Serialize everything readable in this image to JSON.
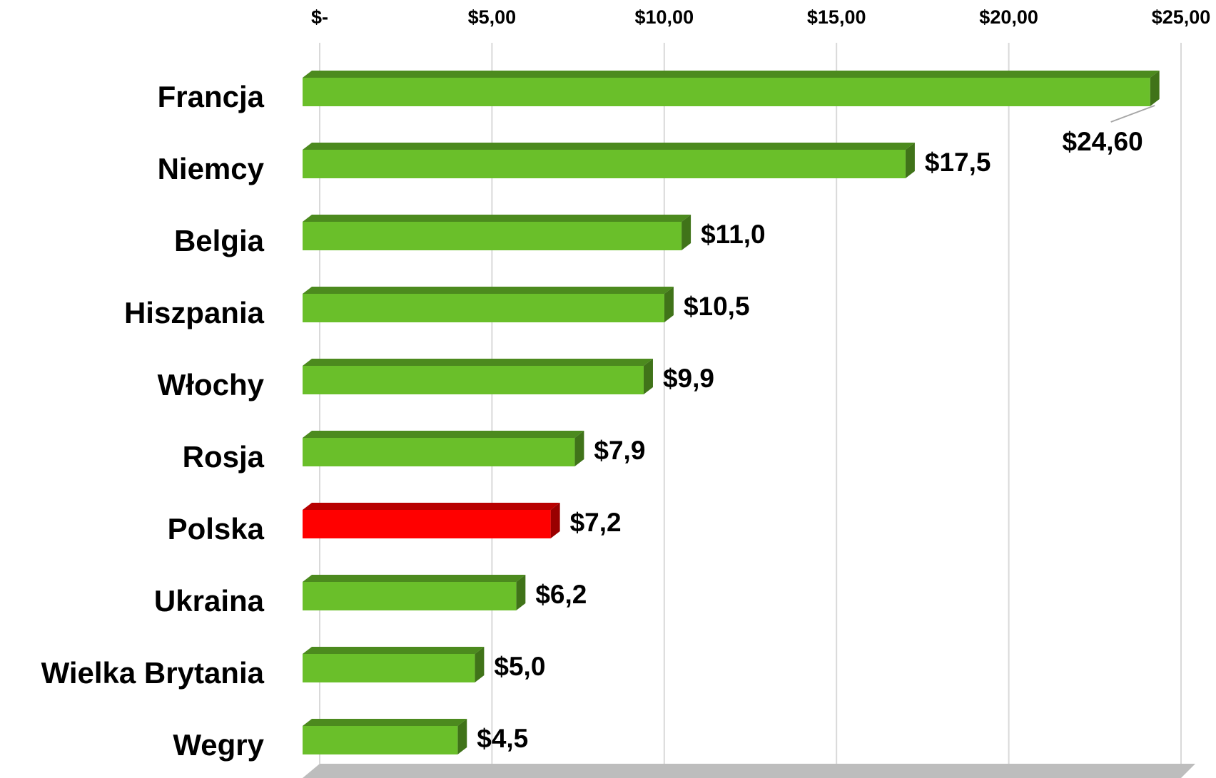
{
  "chart_data": {
    "type": "bar",
    "orientation": "horizontal",
    "categories": [
      "Francja",
      "Niemcy",
      "Belgia",
      "Hiszpania",
      "Włochy",
      "Rosja",
      "Polska",
      "Ukraina",
      "Wielka Brytania",
      "Wegry"
    ],
    "values": [
      24.6,
      17.5,
      11.0,
      10.5,
      9.9,
      7.9,
      7.2,
      6.2,
      5.0,
      4.5
    ],
    "value_labels": [
      "$24,60",
      "$17,5",
      "$11,0",
      "$10,5",
      "$9,9",
      "$7,9",
      "$7,2",
      "$6,2",
      "$5,0",
      "$4,5"
    ],
    "colors": [
      "#6abf2a",
      "#6abf2a",
      "#6abf2a",
      "#6abf2a",
      "#6abf2a",
      "#6abf2a",
      "#ff0000",
      "#6abf2a",
      "#6abf2a",
      "#6abf2a"
    ],
    "xlim": [
      0,
      25
    ],
    "xticks": [
      {
        "value": 0,
        "label": "$-"
      },
      {
        "value": 5,
        "label": "$5,00"
      },
      {
        "value": 10,
        "label": "$10,00"
      },
      {
        "value": 15,
        "label": "$15,00"
      },
      {
        "value": 20,
        "label": "$20,00"
      },
      {
        "value": 25,
        "label": "$25,00"
      }
    ],
    "grid": true
  }
}
